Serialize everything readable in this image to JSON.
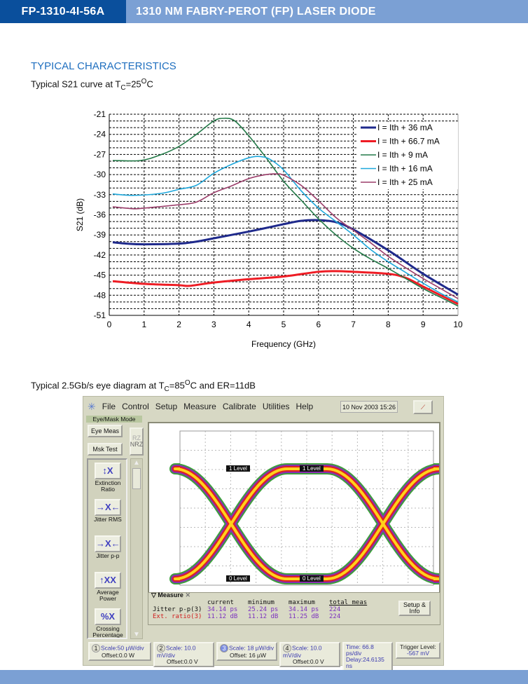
{
  "header": {
    "part_number": "FP-1310-4I-56A",
    "title": "1310 NM FABRY-PEROT (FP) LASER DIODE"
  },
  "section_title": "TYPICAL CHARACTERISTICS",
  "caption1": {
    "pre": "Typical S21 curve at T",
    "sub": "C",
    "mid": "=25",
    "sup": "O",
    "post": "C"
  },
  "caption2": {
    "pre": "Typical 2.5Gb/s eye diagram at T",
    "sub": "C",
    "mid": "=85",
    "sup": "O",
    "post": "C and ER=11dB"
  },
  "colors": {
    "brand_dark": "#0a4f9c",
    "brand_light": "#7ba0d4",
    "section": "#1f6fbf"
  },
  "chart_data": {
    "type": "line",
    "xlabel": "Frequency (GHz)",
    "ylabel": "S21 (dB)",
    "xlim": [
      0,
      10
    ],
    "ylim": [
      -51,
      -21
    ],
    "xticks": [
      "0",
      "1",
      "2",
      "3",
      "4",
      "5",
      "6",
      "7",
      "8",
      "9",
      "10"
    ],
    "yticks": [
      "-21",
      "-24",
      "-27",
      "-30",
      "-33",
      "-36",
      "-39",
      "-42",
      "-45",
      "-48",
      "-51"
    ],
    "grid": true,
    "legend_position": "top-right",
    "series": [
      {
        "name": "I = Ith + 36 mA",
        "color": "#1f2a8c",
        "width": 3,
        "x": [
          0.1,
          0.5,
          1,
          2,
          2.5,
          3,
          4,
          5,
          5.5,
          6,
          6.5,
          7,
          8,
          9,
          10
        ],
        "y": [
          -40.1,
          -40.3,
          -40.4,
          -40.3,
          -40.0,
          -39.5,
          -38.5,
          -37.4,
          -36.9,
          -36.8,
          -37.1,
          -38.2,
          -41.3,
          -44.8,
          -47.9
        ]
      },
      {
        "name": "I = Ith + 66.7 mA",
        "color": "#ee1c24",
        "width": 3,
        "x": [
          0.1,
          1,
          2,
          2.3,
          3,
          4,
          5,
          6,
          6.5,
          7,
          8,
          8.5,
          9,
          9.5,
          10
        ],
        "y": [
          -45.9,
          -46.3,
          -46.5,
          -46.6,
          -46.1,
          -45.6,
          -45.2,
          -44.5,
          -44.4,
          -44.5,
          -44.8,
          -45.4,
          -46.7,
          -48.0,
          -49.3
        ]
      },
      {
        "name": "I = Ith + 9 mA",
        "color": "#237a48",
        "width": 1.6,
        "x": [
          0.1,
          0.9,
          1.5,
          2,
          2.5,
          3,
          3.3,
          3.6,
          4,
          4.5,
          5,
          5.5,
          6,
          6.5,
          7,
          7.5,
          8,
          8.5,
          9,
          9.5,
          10
        ],
        "y": [
          -27.9,
          -27.9,
          -27.0,
          -25.8,
          -24.0,
          -22.0,
          -21.6,
          -22.0,
          -24.2,
          -27.5,
          -31.0,
          -33.8,
          -36.6,
          -39.0,
          -41.0,
          -42.6,
          -44.0,
          -45.5,
          -47.0,
          -48.3,
          -49.6
        ]
      },
      {
        "name": "I = Ith + 16 mA",
        "color": "#1fa8dc",
        "width": 1.6,
        "x": [
          0.1,
          0.7,
          1.5,
          2,
          2.5,
          3,
          3.5,
          4,
          4.3,
          4.6,
          5,
          5.5,
          6,
          6.5,
          7,
          7.5,
          8,
          8.5,
          9,
          9.5,
          10
        ],
        "y": [
          -32.9,
          -33.1,
          -32.8,
          -32.2,
          -31.6,
          -29.8,
          -28.5,
          -27.5,
          -27.3,
          -27.7,
          -29.3,
          -32.4,
          -35.0,
          -37.0,
          -39.0,
          -41.2,
          -43.0,
          -44.6,
          -46.2,
          -47.7,
          -49.0
        ]
      },
      {
        "name": "I = Ith + 25 mA",
        "color": "#9b3d6a",
        "width": 1.6,
        "x": [
          0.1,
          0.7,
          1,
          2,
          2.5,
          3,
          3.5,
          4,
          4.5,
          4.8,
          5,
          5.5,
          6,
          6.5,
          7,
          7.5,
          8,
          8.5,
          9,
          9.5,
          10
        ],
        "y": [
          -34.8,
          -35.1,
          -35.0,
          -34.5,
          -34.1,
          -32.7,
          -31.7,
          -30.6,
          -30.0,
          -29.9,
          -30.1,
          -31.6,
          -33.9,
          -36.4,
          -38.3,
          -40.2,
          -42.2,
          -43.9,
          -45.5,
          -47.0,
          -48.5
        ]
      }
    ]
  },
  "scope": {
    "menu": [
      "File",
      "Control",
      "Setup",
      "Measure",
      "Calibrate",
      "Utilities",
      "Help"
    ],
    "datetime": "10 Nov 2003  15:26",
    "mode_label": "Eye/Mask Mode",
    "eye_meas": "Eye Meas",
    "mask_test": "Msk Test",
    "rz": "RZ",
    "nrz": "NRZ",
    "tools": [
      {
        "label": "Extinction Ratio",
        "icon": "extinction-ratio-icon"
      },
      {
        "label": "Jitter RMS",
        "icon": "jitter-rms-icon"
      },
      {
        "label": "Jitter p-p",
        "icon": "jitter-pp-icon"
      },
      {
        "label": "Average Power",
        "icon": "average-power-icon"
      },
      {
        "label": "Crossing Percentage",
        "icon": "crossing-percentage-icon"
      }
    ],
    "level_markers": {
      "one": "1 Level",
      "zero": "0 Level"
    },
    "measure_tab": "Measure",
    "measure_headers": [
      "current",
      "minimum",
      "maximum",
      "total meas"
    ],
    "measure_rows": [
      {
        "name": "Jitter p-p(3)",
        "values": [
          "34.14 ps",
          "25.24 ps",
          "34.14 ps",
          "224"
        ]
      },
      {
        "name": "Ext. ratio(3)",
        "values": [
          "11.12 dB",
          "11.12 dB",
          "11.25 dB",
          "224"
        ]
      }
    ],
    "setup_info": "Setup & Info",
    "channels": [
      {
        "num": "1",
        "scale": "Scale:50 µW/div",
        "offset": "Offset:0.0 W"
      },
      {
        "num": "2",
        "scale": "Scale: 10.0 mV/div",
        "offset": "Offset:0.0 V"
      },
      {
        "num": "3",
        "scale": "Scale: 18 µW/div",
        "offset": "Offset: 16 µW"
      },
      {
        "num": "4",
        "scale": "Scale: 10.0 mV/div",
        "offset": "Offset:0.0 V"
      }
    ],
    "timebase": {
      "time": "Time: 66.8 ps/div",
      "delay": "Delay:24.6135 ns"
    },
    "trigger": {
      "label": "Trigger Level:",
      "value": "-567 mV"
    }
  }
}
